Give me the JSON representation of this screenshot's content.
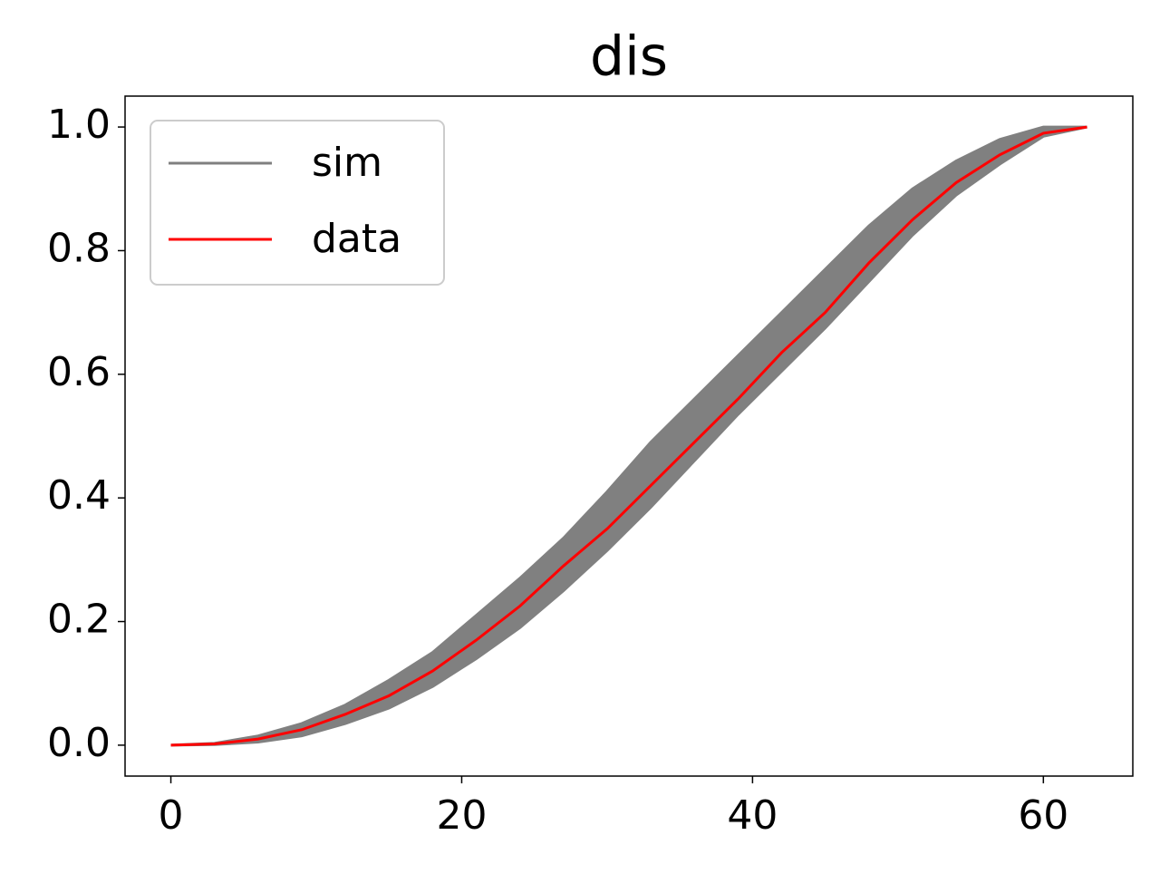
{
  "chart_data": {
    "type": "line",
    "title": "dis",
    "x": [
      0,
      3,
      6,
      9,
      12,
      15,
      18,
      21,
      24,
      27,
      30,
      33,
      36,
      39,
      42,
      45,
      48,
      51,
      54,
      57,
      60,
      63
    ],
    "series": [
      {
        "name": "sim",
        "color": "#808080",
        "upper": [
          0,
          0.003,
          0.015,
          0.035,
          0.065,
          0.105,
          0.15,
          0.21,
          0.27,
          0.335,
          0.41,
          0.49,
          0.56,
          0.63,
          0.7,
          0.77,
          0.84,
          0.9,
          0.945,
          0.98,
          1.0,
          1.0
        ],
        "lower": [
          0,
          0.001,
          0.005,
          0.015,
          0.035,
          0.06,
          0.095,
          0.14,
          0.19,
          0.25,
          0.315,
          0.385,
          0.46,
          0.535,
          0.605,
          0.675,
          0.75,
          0.825,
          0.89,
          0.94,
          0.985,
          1.0
        ]
      },
      {
        "name": "data",
        "color": "#ff0000",
        "values": [
          0,
          0.002,
          0.01,
          0.025,
          0.05,
          0.08,
          0.12,
          0.17,
          0.225,
          0.29,
          0.35,
          0.42,
          0.49,
          0.56,
          0.635,
          0.7,
          0.78,
          0.85,
          0.91,
          0.955,
          0.99,
          1.0
        ]
      }
    ],
    "xlim": [
      -3.15,
      66.15
    ],
    "xticks": [
      0,
      20,
      40,
      60
    ],
    "ylim": [
      -0.05,
      1.05
    ],
    "yticks": [
      {
        "value": 0,
        "label": "0.0"
      },
      {
        "value": 0.2,
        "label": "0.2"
      },
      {
        "value": 0.4,
        "label": "0.4"
      },
      {
        "value": 0.6,
        "label": "0.6"
      },
      {
        "value": 0.8,
        "label": "0.8"
      },
      {
        "value": 1.0,
        "label": "1.0"
      }
    ],
    "legend": "upper left"
  }
}
